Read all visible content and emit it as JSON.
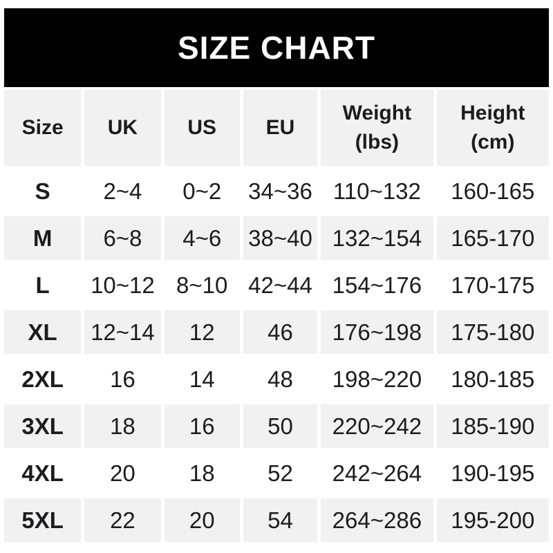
{
  "title": "SIZE CHART",
  "table": {
    "columns": [
      {
        "line1": "Size",
        "line2": ""
      },
      {
        "line1": "UK",
        "line2": ""
      },
      {
        "line1": "US",
        "line2": ""
      },
      {
        "line1": "EU",
        "line2": ""
      },
      {
        "line1": "Weight",
        "line2": "(lbs)"
      },
      {
        "line1": "Height",
        "line2": "(cm)"
      }
    ],
    "rows": [
      {
        "size": "S",
        "uk": "2~4",
        "us": "0~2",
        "eu": "34~36",
        "weight": "110~132",
        "height": "160-165"
      },
      {
        "size": "M",
        "uk": "6~8",
        "us": "4~6",
        "eu": "38~40",
        "weight": "132~154",
        "height": "165-170"
      },
      {
        "size": "L",
        "uk": "10~12",
        "us": "8~10",
        "eu": "42~44",
        "weight": "154~176",
        "height": "170-175"
      },
      {
        "size": "XL",
        "uk": "12~14",
        "us": "12",
        "eu": "46",
        "weight": "176~198",
        "height": "175-180"
      },
      {
        "size": "2XL",
        "uk": "16",
        "us": "14",
        "eu": "48",
        "weight": "198~220",
        "height": "180-185"
      },
      {
        "size": "3XL",
        "uk": "18",
        "us": "16",
        "eu": "50",
        "weight": "220~242",
        "height": "185-190"
      },
      {
        "size": "4XL",
        "uk": "20",
        "us": "18",
        "eu": "52",
        "weight": "242~264",
        "height": "190-195"
      },
      {
        "size": "5XL",
        "uk": "22",
        "us": "20",
        "eu": "54",
        "weight": "264~286",
        "height": "195-200"
      }
    ]
  },
  "colors": {
    "banner_bg": "#000000",
    "banner_text": "#ffffff",
    "row_alt_bg": "#f1f1f1",
    "text": "#1c1c1e",
    "page_bg": "#ffffff"
  },
  "chart_data": {
    "type": "table",
    "title": "SIZE CHART",
    "columns": [
      "Size",
      "UK",
      "US",
      "EU",
      "Weight (lbs)",
      "Height (cm)"
    ],
    "rows": [
      [
        "S",
        "2~4",
        "0~2",
        "34~36",
        "110~132",
        "160-165"
      ],
      [
        "M",
        "6~8",
        "4~6",
        "38~40",
        "132~154",
        "165-170"
      ],
      [
        "L",
        "10~12",
        "8~10",
        "42~44",
        "154~176",
        "170-175"
      ],
      [
        "XL",
        "12~14",
        "12",
        "46",
        "176~198",
        "175-180"
      ],
      [
        "2XL",
        "16",
        "14",
        "48",
        "198~220",
        "180-185"
      ],
      [
        "3XL",
        "18",
        "16",
        "50",
        "220~242",
        "185-190"
      ],
      [
        "4XL",
        "20",
        "18",
        "52",
        "242~264",
        "190-195"
      ],
      [
        "5XL",
        "22",
        "20",
        "54",
        "264~286",
        "195-200"
      ]
    ]
  }
}
